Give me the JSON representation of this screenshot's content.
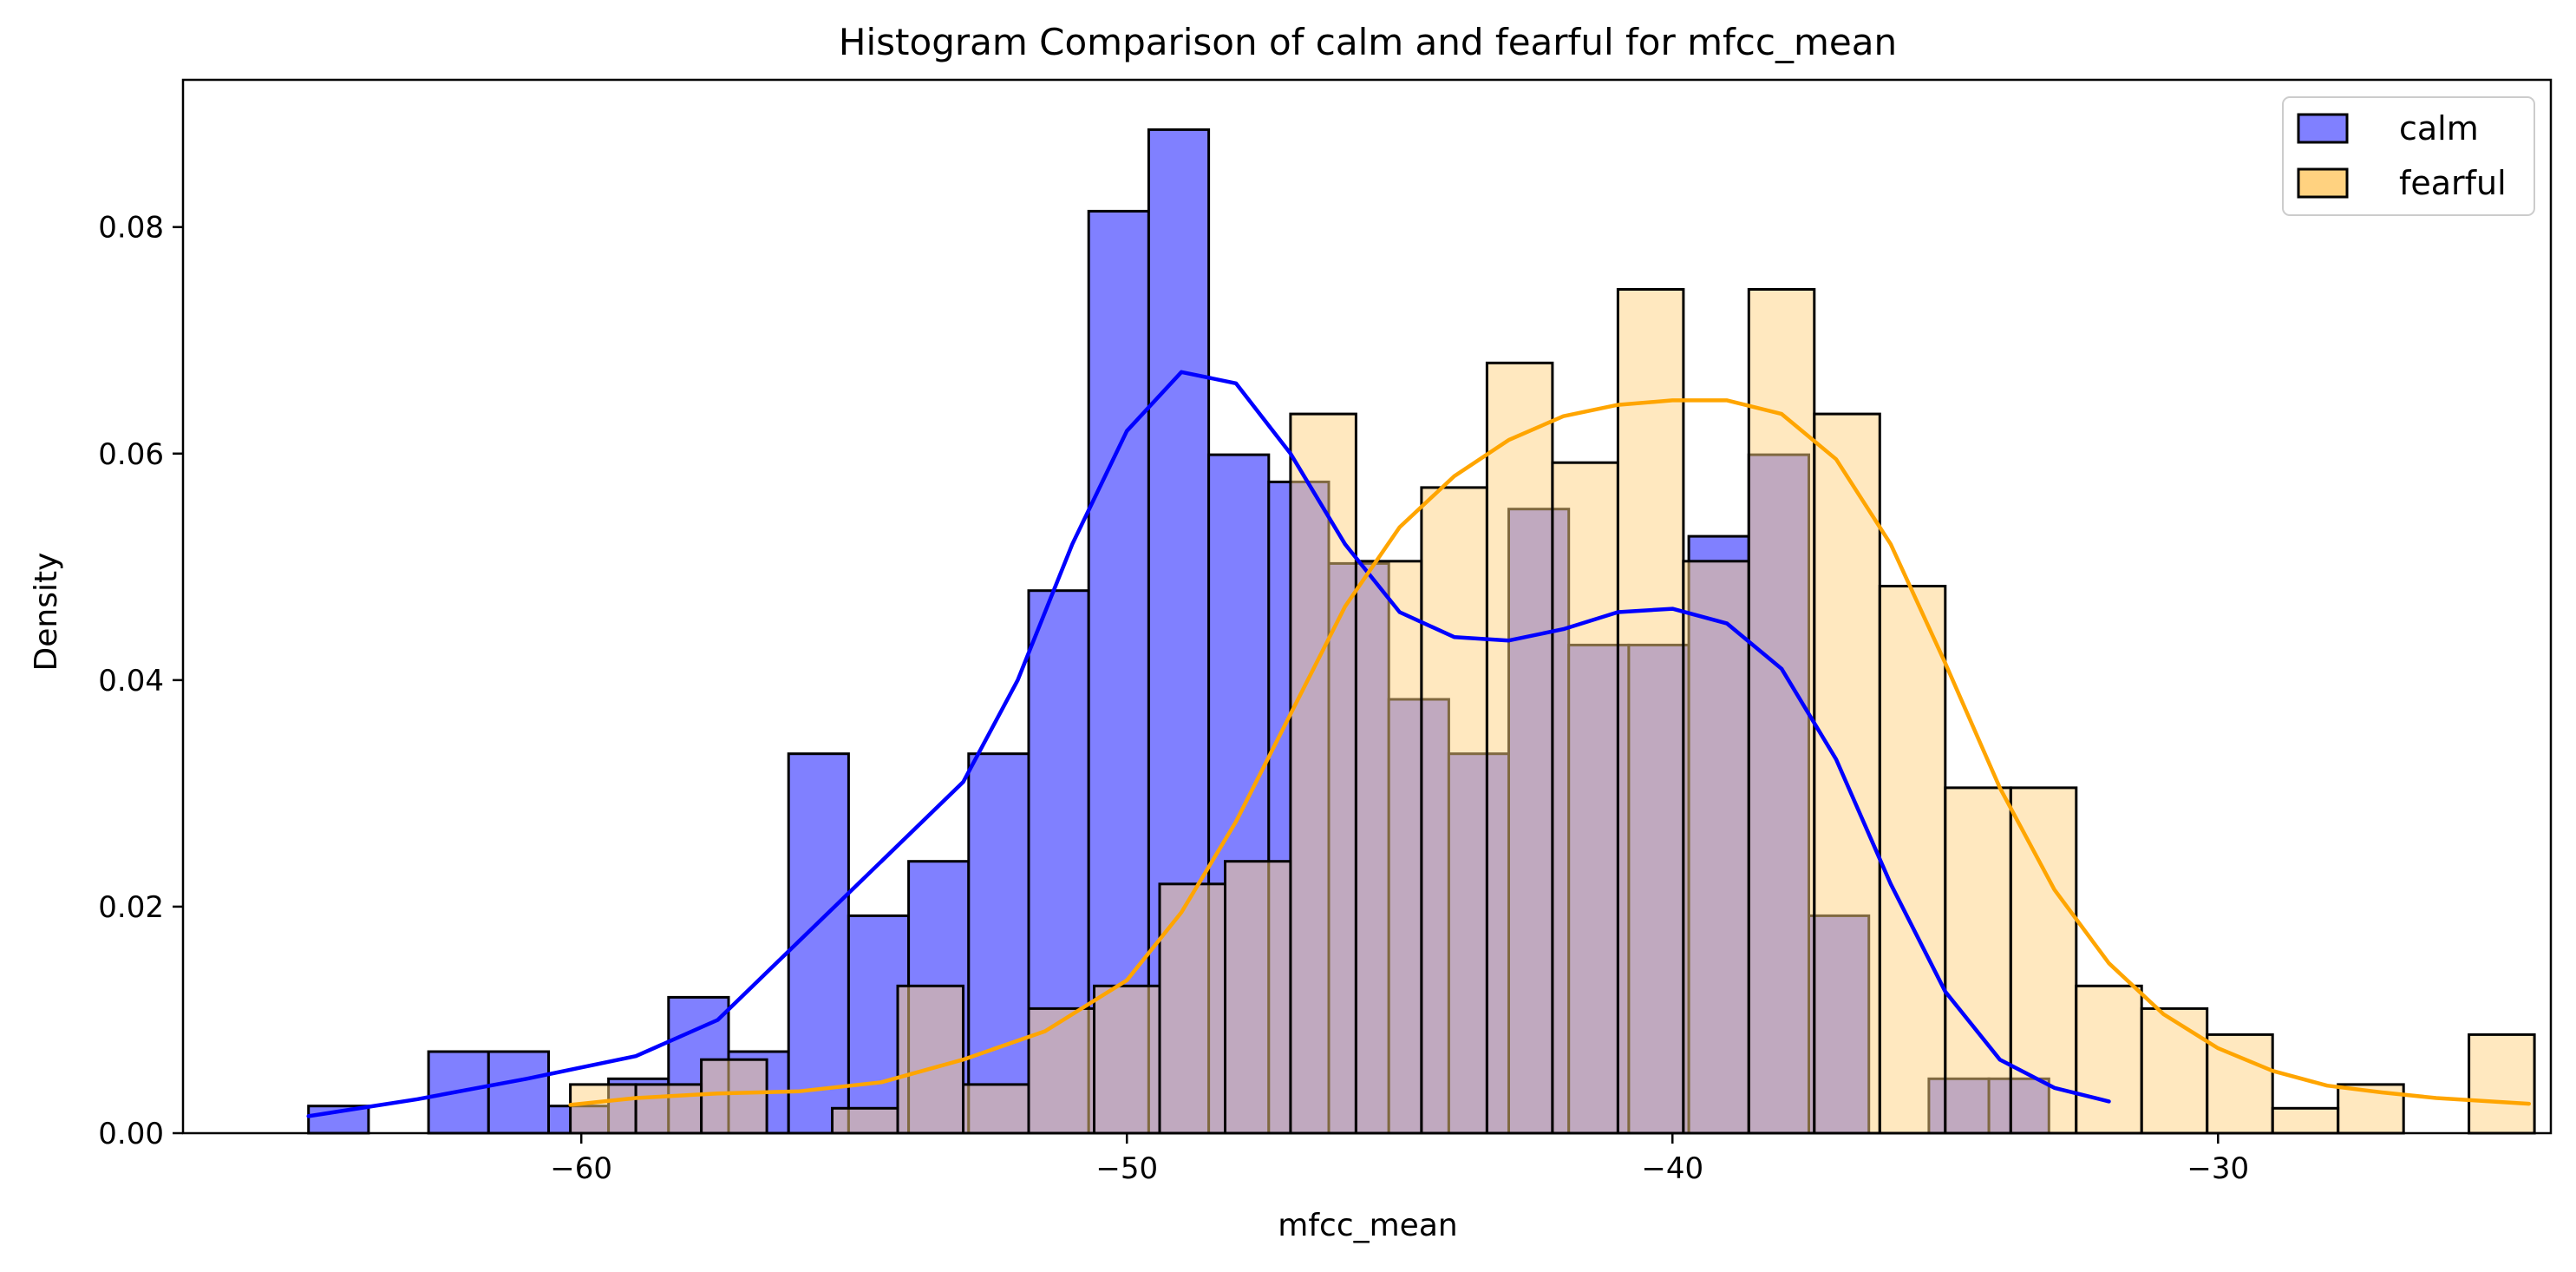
{
  "chart_data": {
    "type": "histogram",
    "title": "Histogram Comparison of calm and fearful for mfcc_mean",
    "xlabel": "mfcc_mean",
    "ylabel": "Density",
    "xlim": [
      -67.3,
      -23.9
    ],
    "ylim": [
      0,
      0.093
    ],
    "xticks": [
      -60,
      -50,
      -40,
      -30
    ],
    "xtick_labels": [
      "−60",
      "−50",
      "−40",
      "−30"
    ],
    "yticks": [
      0,
      0.02,
      0.04,
      0.06,
      0.08
    ],
    "ytick_labels": [
      "0.00",
      "0.02",
      "0.04",
      "0.06",
      "0.08"
    ],
    "grid": false,
    "legend_position": "top-right",
    "series": [
      {
        "name": "calm",
        "color": "#0000ff",
        "bar_color": "#8080ff",
        "edges": [
          -65.0,
          -63.9,
          -62.8,
          -61.7,
          -60.6,
          -59.5,
          -58.4,
          -57.3,
          -56.2,
          -55.1,
          -54.0,
          -52.9,
          -51.8,
          -50.7,
          -49.6,
          -48.5,
          -47.4,
          -46.3,
          -45.2,
          -44.1,
          -43.0,
          -41.9,
          -40.8,
          -39.7,
          -38.6,
          -37.5,
          -36.4,
          -35.3,
          -34.2,
          -33.1,
          -32.0
        ],
        "values": [
          0.0024,
          0.0,
          0.0072,
          0.0072,
          0.0024,
          0.0048,
          0.012,
          0.0072,
          0.0335,
          0.0192,
          0.024,
          0.0335,
          0.0479,
          0.0814,
          0.0886,
          0.0599,
          0.0575,
          0.0503,
          0.0383,
          0.0335,
          0.0551,
          0.0431,
          0.0431,
          0.0527,
          0.0599,
          0.0192,
          0.0,
          0.0048,
          0.0048,
          0.0
        ],
        "kde": [
          [
            -65.0,
            0.0015
          ],
          [
            -63.0,
            0.003
          ],
          [
            -61.0,
            0.0048
          ],
          [
            -59.0,
            0.0068
          ],
          [
            -57.5,
            0.01
          ],
          [
            -56.0,
            0.017
          ],
          [
            -54.5,
            0.024
          ],
          [
            -53.0,
            0.031
          ],
          [
            -52.0,
            0.04
          ],
          [
            -51.0,
            0.052
          ],
          [
            -50.0,
            0.062
          ],
          [
            -49.0,
            0.0672
          ],
          [
            -48.0,
            0.0662
          ],
          [
            -47.0,
            0.06
          ],
          [
            -46.0,
            0.052
          ],
          [
            -45.0,
            0.046
          ],
          [
            -44.0,
            0.0438
          ],
          [
            -43.0,
            0.0435
          ],
          [
            -42.0,
            0.0445
          ],
          [
            -41.0,
            0.046
          ],
          [
            -40.0,
            0.0463
          ],
          [
            -39.0,
            0.045
          ],
          [
            -38.0,
            0.041
          ],
          [
            -37.0,
            0.033
          ],
          [
            -36.0,
            0.022
          ],
          [
            -35.0,
            0.0125
          ],
          [
            -34.0,
            0.0065
          ],
          [
            -33.0,
            0.004
          ],
          [
            -32.0,
            0.0028
          ]
        ]
      },
      {
        "name": "fearful",
        "color": "#ffa500",
        "bar_color": "#ffd280",
        "edges": [
          -60.2,
          -59.0,
          -57.8,
          -56.6,
          -55.4,
          -54.2,
          -53.0,
          -51.8,
          -50.6,
          -49.4,
          -48.2,
          -47.0,
          -45.8,
          -44.6,
          -43.4,
          -42.2,
          -41.0,
          -39.8,
          -38.6,
          -37.4,
          -36.2,
          -35.0,
          -33.8,
          -32.6,
          -31.4,
          -30.2,
          -29.0,
          -27.8,
          -26.6,
          -25.4,
          -24.2
        ],
        "values": [
          0.0043,
          0.0043,
          0.0065,
          0.0,
          0.0022,
          0.013,
          0.0043,
          0.011,
          0.013,
          0.022,
          0.024,
          0.0635,
          0.0505,
          0.057,
          0.068,
          0.0592,
          0.0745,
          0.0505,
          0.0745,
          0.0635,
          0.0483,
          0.0305,
          0.0305,
          0.013,
          0.011,
          0.0087,
          0.0022,
          0.0043,
          0.0,
          0.0087
        ],
        "kde": [
          [
            -60.2,
            0.0025
          ],
          [
            -59.0,
            0.0031
          ],
          [
            -57.5,
            0.0035
          ],
          [
            -56.0,
            0.0037
          ],
          [
            -54.5,
            0.0045
          ],
          [
            -53.0,
            0.0065
          ],
          [
            -51.5,
            0.009
          ],
          [
            -50.0,
            0.0135
          ],
          [
            -49.0,
            0.0195
          ],
          [
            -48.0,
            0.0275
          ],
          [
            -47.0,
            0.037
          ],
          [
            -46.0,
            0.0465
          ],
          [
            -45.0,
            0.0535
          ],
          [
            -44.0,
            0.058
          ],
          [
            -43.0,
            0.0612
          ],
          [
            -42.0,
            0.0633
          ],
          [
            -41.0,
            0.0643
          ],
          [
            -40.0,
            0.0647
          ],
          [
            -39.0,
            0.0647
          ],
          [
            -38.0,
            0.0635
          ],
          [
            -37.0,
            0.0595
          ],
          [
            -36.0,
            0.052
          ],
          [
            -35.0,
            0.0415
          ],
          [
            -34.0,
            0.0305
          ],
          [
            -33.0,
            0.0215
          ],
          [
            -32.0,
            0.015
          ],
          [
            -31.0,
            0.0105
          ],
          [
            -30.0,
            0.0075
          ],
          [
            -29.0,
            0.0055
          ],
          [
            -28.0,
            0.0042
          ],
          [
            -27.0,
            0.0036
          ],
          [
            -26.0,
            0.0031
          ],
          [
            -24.3,
            0.0026
          ]
        ]
      }
    ]
  }
}
